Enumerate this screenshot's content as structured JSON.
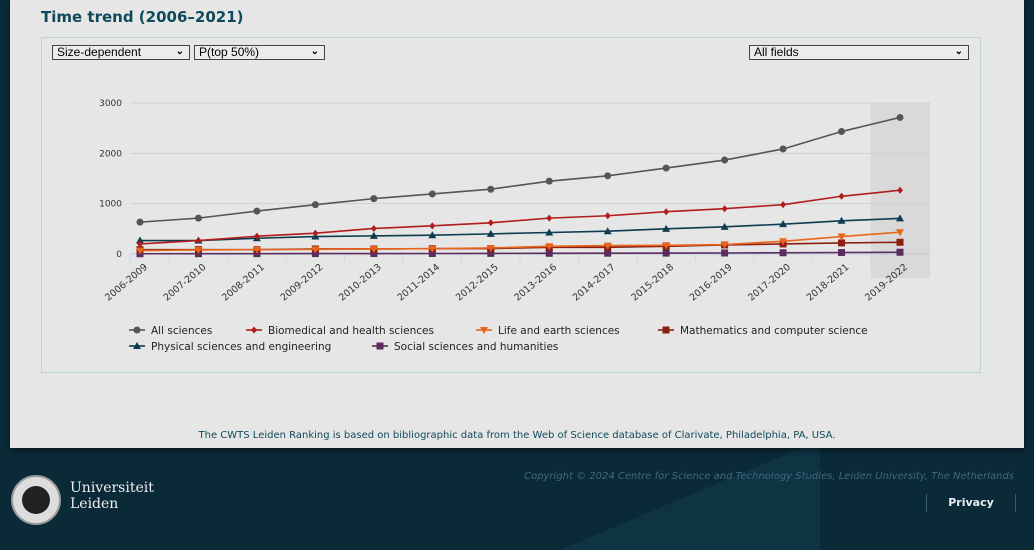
{
  "title": "Time trend (2006–2021)",
  "controls": {
    "mode": "Size-dependent",
    "indicator": "P(top 50%)",
    "field": "All fields"
  },
  "chart_data": {
    "type": "line",
    "title": "Time trend (2006–2021)",
    "xlabel": "",
    "ylabel": "",
    "ylim": [
      0,
      3000
    ],
    "yticks": [
      "0",
      "1000",
      "2000",
      "3000"
    ],
    "categories": [
      "2006-2009",
      "2007-2010",
      "2008-2011",
      "2009-2012",
      "2010-2013",
      "2011-2014",
      "2012-2015",
      "2013-2016",
      "2014-2017",
      "2015-2018",
      "2016-2019",
      "2017-2020",
      "2018-2021",
      "2019-2022"
    ],
    "grid": true,
    "legend": "bottom",
    "series": [
      {
        "name": "All sciences",
        "color": "#555555",
        "marker": "circle",
        "values": [
          633,
          713,
          853,
          980,
          1100,
          1193,
          1287,
          1447,
          1553,
          1707,
          1867,
          2087,
          2433,
          2713
        ]
      },
      {
        "name": "Biomedical and health sciences",
        "color": "#b01c1c",
        "marker": "diamond",
        "values": [
          200,
          267,
          353,
          413,
          507,
          560,
          620,
          713,
          760,
          840,
          900,
          980,
          1147,
          1267
        ]
      },
      {
        "name": "Life and earth sciences",
        "color": "#e8661c",
        "marker": "triangle-down",
        "values": [
          67,
          80,
          87,
          93,
          100,
          107,
          120,
          153,
          167,
          173,
          187,
          253,
          347,
          433
        ]
      },
      {
        "name": "Mathematics and computer science",
        "color": "#8b1f10",
        "marker": "square",
        "values": [
          87,
          87,
          87,
          100,
          100,
          107,
          107,
          133,
          133,
          153,
          180,
          200,
          220,
          233
        ]
      },
      {
        "name": "Physical sciences and engineering",
        "color": "#0d3b4f",
        "marker": "triangle",
        "values": [
          267,
          267,
          313,
          347,
          360,
          373,
          400,
          427,
          453,
          500,
          540,
          593,
          660,
          707
        ]
      },
      {
        "name": "Social sciences and humanities",
        "color": "#5a2d5e",
        "marker": "square",
        "values": [
          5,
          6,
          7,
          8,
          9,
          10,
          12,
          14,
          16,
          18,
          20,
          25,
          30,
          35
        ]
      }
    ]
  },
  "footer": {
    "note": "The CWTS Leiden Ranking is based on bibliographic data from the Web of Science database of Clarivate, Philadelphia, PA, USA.",
    "copyright": "Copyright © 2024 Centre for Science and Technology Studies, Leiden University, The Netherlands",
    "privacy": "Privacy",
    "logo_text": "Universiteit Leiden"
  }
}
